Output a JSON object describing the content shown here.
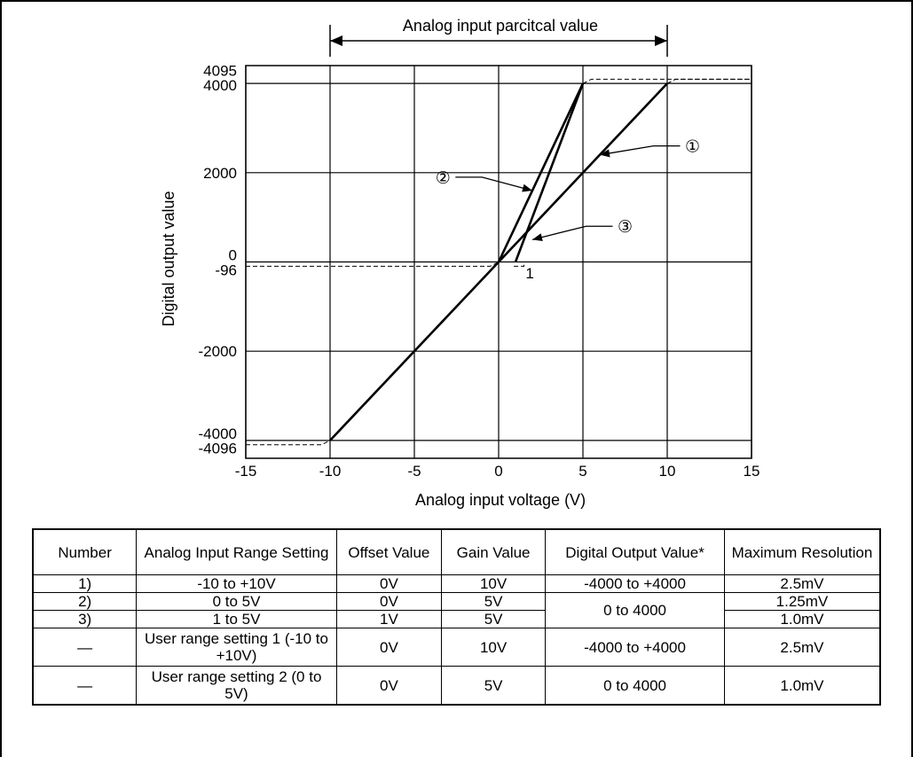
{
  "chart_data": {
    "type": "line",
    "title": "Analog input parcitcal value",
    "xlabel": "Analog input voltage (V)",
    "ylabel": "Digital output value",
    "xlim": [
      -15,
      15
    ],
    "ylim": [
      -4400,
      4400
    ],
    "x_ticks": [
      -15,
      -10,
      -5,
      0,
      5,
      10,
      15
    ],
    "y_ticks": [
      4095,
      4000,
      2000,
      0,
      -96,
      -2000,
      -4000,
      -4096
    ],
    "x_tick_labels": [
      "-15",
      "-10",
      "-5",
      "0",
      "5",
      "10",
      "15"
    ],
    "y_tick_labels": [
      "4095",
      "4000",
      "2000",
      "0",
      "-96",
      "-2000",
      "-4000",
      "-4096"
    ],
    "grid": true,
    "series": [
      {
        "name": "①",
        "points": [
          [
            -10,
            -4000
          ],
          [
            10,
            4000
          ]
        ]
      },
      {
        "name": "②",
        "points": [
          [
            0,
            0
          ],
          [
            5,
            4000
          ]
        ]
      },
      {
        "name": "③",
        "points": [
          [
            1,
            0
          ],
          [
            5,
            4000
          ]
        ]
      }
    ],
    "saturation_lines": [
      {
        "points": [
          [
            -15,
            -4096
          ],
          [
            -10.5,
            -4096
          ],
          [
            -10,
            -4000
          ]
        ]
      },
      {
        "points": [
          [
            -15,
            -96
          ],
          [
            -0.5,
            -96
          ],
          [
            0,
            0
          ]
        ]
      },
      {
        "points": [
          [
            0.9,
            -96
          ],
          [
            1.5,
            -96
          ],
          [
            1.5,
            0
          ]
        ]
      },
      {
        "points": [
          [
            5,
            4000
          ],
          [
            5.5,
            4095
          ],
          [
            15,
            4095
          ]
        ]
      },
      {
        "points": [
          [
            10,
            4000
          ],
          [
            10.5,
            4095
          ],
          [
            15,
            4095
          ]
        ]
      }
    ],
    "annotations": [
      {
        "text": "1",
        "x": 1.6,
        "y": -250
      },
      {
        "text": "①",
        "target": [
          6,
          2400
        ],
        "label_at": [
          11.5,
          2600
        ]
      },
      {
        "text": "②",
        "target": [
          2,
          1600
        ],
        "label_at": [
          -3.3,
          1900
        ]
      },
      {
        "text": "③",
        "target": [
          2,
          500
        ],
        "label_at": [
          7.5,
          800
        ]
      }
    ]
  },
  "table": {
    "headers": [
      "Number",
      "Analog Input Range Setting",
      "Offset Value",
      "Gain Value",
      "Digital Output Value*",
      "Maximum Resolution"
    ],
    "rows": [
      [
        "1)",
        "-10 to +10V",
        "0V",
        "10V",
        "-4000 to +4000",
        "2.5mV"
      ],
      [
        "2)",
        "0 to 5V",
        "0V",
        "5V",
        "0 to 4000",
        "1.25mV"
      ],
      [
        "3)",
        "1 to 5V",
        "1V",
        "5V",
        "",
        "1.0mV"
      ],
      [
        "—",
        "User range setting 1 (-10 to +10V)",
        "0V",
        "10V",
        "-4000 to +4000",
        "2.5mV"
      ],
      [
        "—",
        "User range setting 2 (0 to 5V)",
        "0V",
        "5V",
        "0 to 4000",
        "1.0mV"
      ]
    ]
  }
}
